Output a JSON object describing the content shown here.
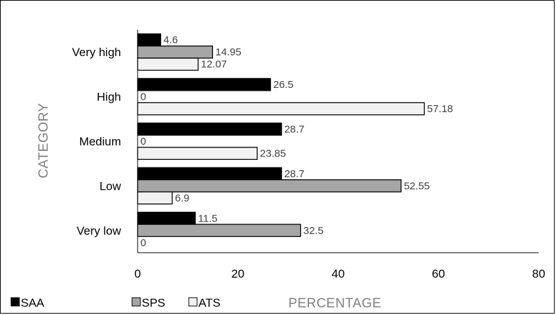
{
  "chart_data": {
    "type": "bar",
    "orientation": "horizontal",
    "categories": [
      "Very low",
      "Low",
      "Medium",
      "High",
      "Very high"
    ],
    "series": [
      {
        "name": "SAA",
        "values": [
          11.5,
          28.7,
          28.7,
          26.5,
          4.6
        ],
        "color": "#000000"
      },
      {
        "name": "SPS",
        "values": [
          32.5,
          52.55,
          0,
          0,
          14.95
        ],
        "color": "#a6a6a6"
      },
      {
        "name": "ATS",
        "values": [
          0,
          6.9,
          23.85,
          57.18,
          12.07
        ],
        "color": "#f2f2f2"
      }
    ],
    "data_labels": {
      "SAA": [
        "11.5",
        "28.7",
        "28.7",
        "26.5",
        "4.6"
      ],
      "SPS": [
        "32.5",
        "52.55",
        "0",
        "0",
        "14.95"
      ],
      "ATS": [
        "0",
        "6.9",
        "23.85",
        "57.18",
        "12.07"
      ]
    },
    "xlabel": "PERCENTAGE",
    "ylabel": "CATEGORY",
    "xlim": [
      0,
      80
    ],
    "xticks": [
      "0",
      "20",
      "40",
      "60",
      "80"
    ],
    "grid": false,
    "legend_position": "bottom-left"
  }
}
